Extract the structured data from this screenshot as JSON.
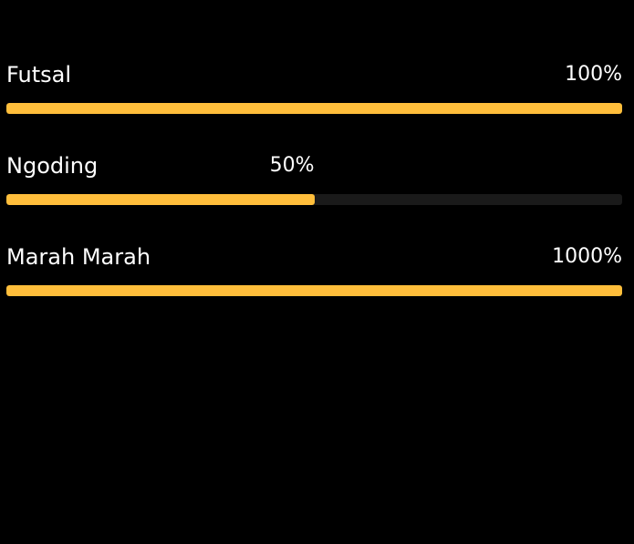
{
  "colors": {
    "background": "#000000",
    "text": "#ffffff",
    "bar_fill": "#ffbe3b",
    "bar_track": "#1a1a1a"
  },
  "skills": [
    {
      "label": "Futsal",
      "percent_text": "100%",
      "fill_fraction": 1.0
    },
    {
      "label": "Ngoding",
      "percent_text": "50%",
      "fill_fraction": 0.5
    },
    {
      "label": "Marah Marah",
      "percent_text": "1000%",
      "fill_fraction": 1.0
    }
  ]
}
